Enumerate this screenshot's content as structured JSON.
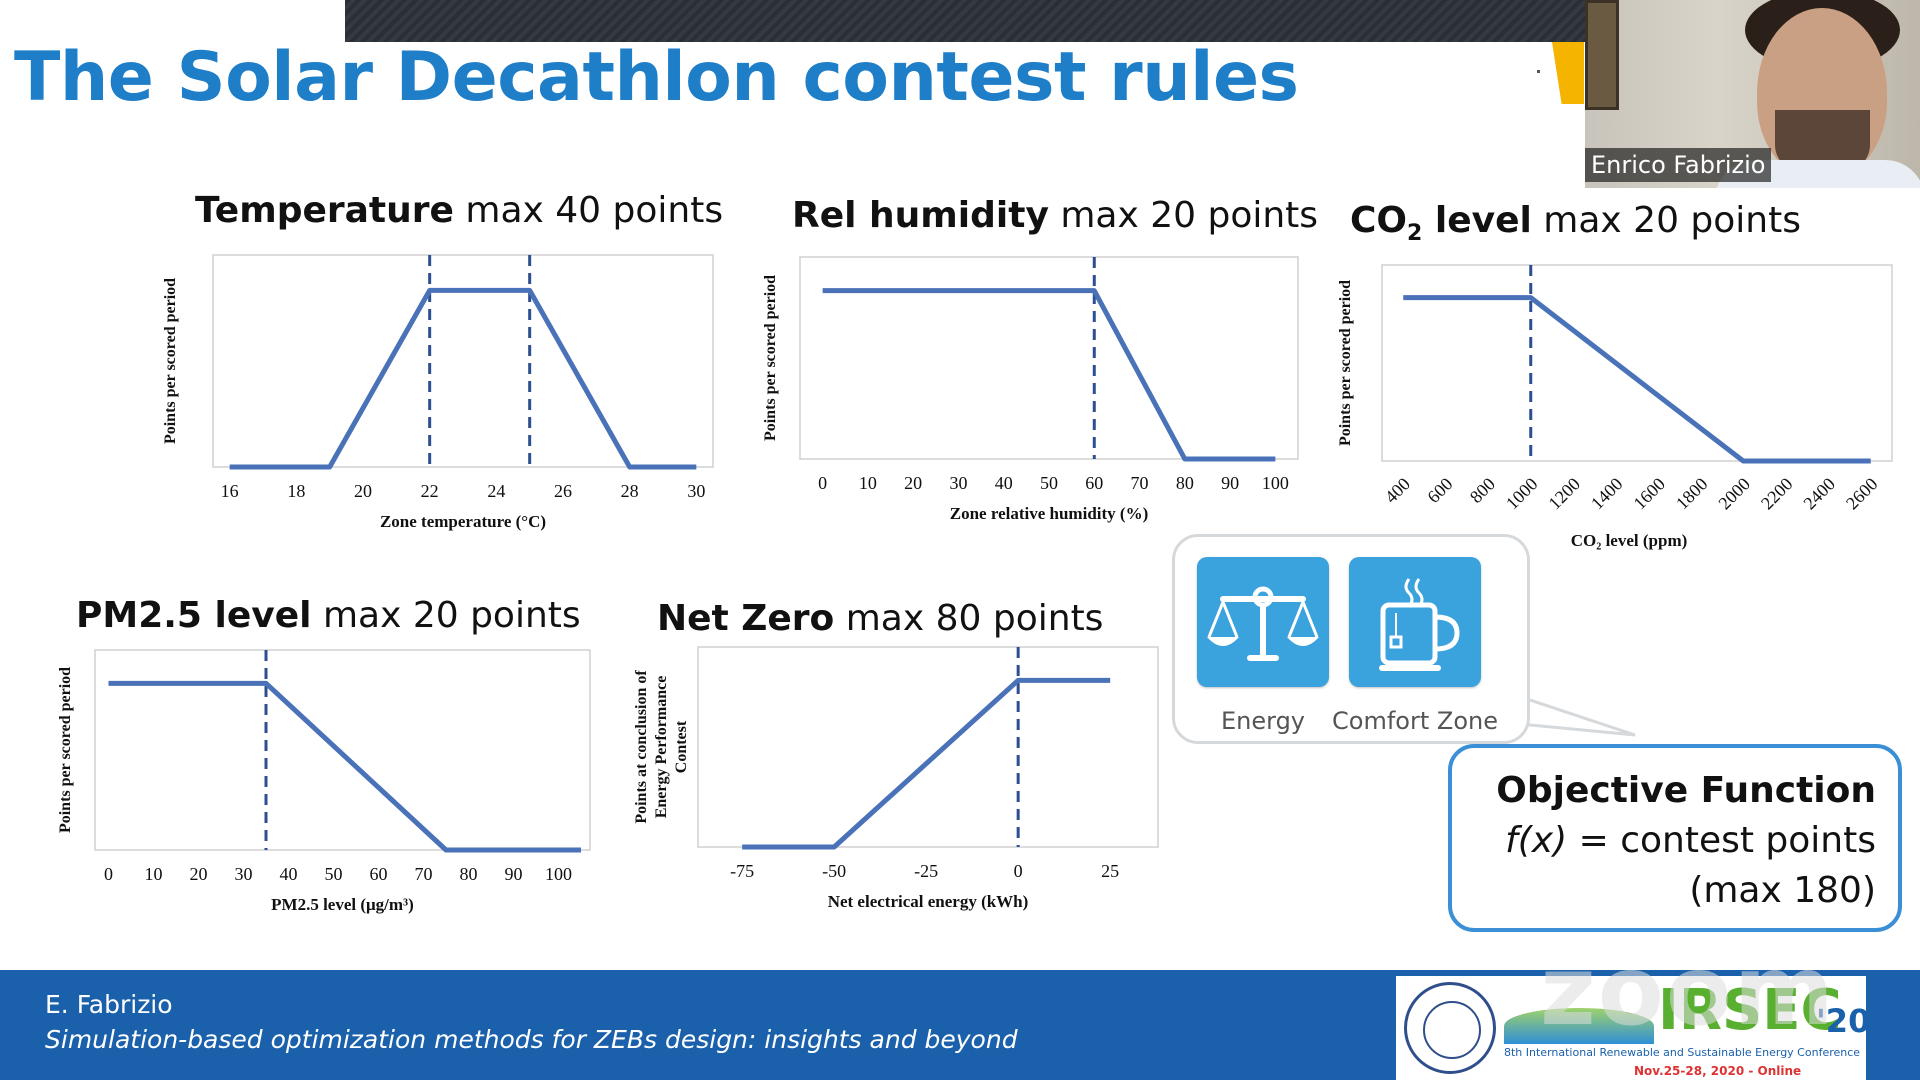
{
  "slide": {
    "title": "The Solar Decathlon contest rules"
  },
  "colors": {
    "title": "#1e7ec8",
    "line": "#4a72b8",
    "footer": "#1a60ab",
    "tile": "#3aa2dc",
    "objective_border": "#3b8fd6"
  },
  "charts": [
    {
      "head_bold": "Temperature",
      "head_rest": " max 40 points"
    },
    {
      "head_bold": "Rel humidity",
      "head_rest": " max 20 points"
    },
    {
      "head_bold_1": "CO",
      "head_sub": "2",
      "head_bold_2": " level",
      "head_rest": " max 20 points"
    },
    {
      "head_bold": "PM2.5 level",
      "head_rest": " max 20 points"
    },
    {
      "head_bold": "Net Zero",
      "head_rest": " max 80 points"
    }
  ],
  "chart_data": [
    {
      "type": "line",
      "title": "Temperature max 40 points",
      "xlabel": "Zone temperature (°C)",
      "ylabel": "Points per scored period",
      "xticks": [
        "16",
        "18",
        "20",
        "22",
        "24",
        "26",
        "28",
        "30"
      ],
      "xlim": [
        15.5,
        30.5
      ],
      "ylim": [
        0,
        1.2
      ],
      "x": [
        16,
        19,
        22,
        25,
        28,
        30
      ],
      "y": [
        0,
        0,
        1,
        1,
        0,
        0
      ],
      "dashed_x": [
        22,
        25
      ]
    },
    {
      "type": "line",
      "title": "Rel humidity max 20 points",
      "xlabel": "Zone relative humidity (%)",
      "ylabel": "Points per scored period",
      "xticks": [
        "0",
        "10",
        "20",
        "30",
        "40",
        "50",
        "60",
        "70",
        "80",
        "90",
        "100"
      ],
      "xlim": [
        -5,
        105
      ],
      "ylim": [
        0,
        1.2
      ],
      "x": [
        0,
        60,
        80,
        100
      ],
      "y": [
        1,
        1,
        0,
        0
      ],
      "dashed_x": [
        60
      ]
    },
    {
      "type": "line",
      "title": "CO2 level max 20 points",
      "xlabel": "CO₂ level (ppm)",
      "ylabel": "Points per scored period",
      "xticks": [
        "400",
        "600",
        "800",
        "1000",
        "1200",
        "1400",
        "1600",
        "1800",
        "2000",
        "2200",
        "2400",
        "2600"
      ],
      "xlim": [
        300,
        2700
      ],
      "ylim": [
        0,
        1.2
      ],
      "x": [
        400,
        1000,
        2000,
        2600
      ],
      "y": [
        1,
        1,
        0,
        0
      ],
      "dashed_x": [
        1000
      ]
    },
    {
      "type": "line",
      "title": "PM2.5 level max 20 points",
      "xlabel": "PM2.5 level (μg/m³)",
      "ylabel": "Points per scored period",
      "xticks": [
        "0",
        "10",
        "20",
        "30",
        "40",
        "50",
        "60",
        "70",
        "80",
        "90",
        "100"
      ],
      "xlim": [
        -3,
        107
      ],
      "ylim": [
        0,
        1.2
      ],
      "x": [
        0,
        35,
        75,
        105
      ],
      "y": [
        1,
        1,
        0,
        0
      ],
      "dashed_x": [
        35
      ]
    },
    {
      "type": "line",
      "title": "Net Zero max 80 points",
      "xlabel": "Net electrical energy (kWh)",
      "ylabel": "Points at conclusion of Energy Performance Contest",
      "xticks": [
        "-75",
        "-50",
        "-25",
        "0",
        "25"
      ],
      "xlim": [
        -87,
        38
      ],
      "ylim": [
        0,
        1.2
      ],
      "x": [
        -75,
        -50,
        0,
        25
      ],
      "y": [
        0,
        0,
        1,
        1
      ],
      "dashed_x": [
        0
      ]
    }
  ],
  "bubble": {
    "items": [
      {
        "label": "Energy",
        "icon": "balance-scale-icon"
      },
      {
        "label": "Comfort Zone",
        "icon": "coffee-mug-icon"
      }
    ]
  },
  "objective": {
    "title": "Objective Function",
    "fx": "f(x)",
    "line2_rest": " = contest points",
    "line3": "(max 180)"
  },
  "webcam": {
    "name": "Enrico Fabrizio"
  },
  "footer": {
    "author": "E. Fabrizio",
    "subtitle": "Simulation-based optimization methods for ZEBs design: insights and beyond"
  },
  "logos": {
    "conference": "IRSEC",
    "year": "'20",
    "conference_sub": "8th International Renewable and Sustainable Energy Conference",
    "conference_date": "Nov.25-28, 2020 - Online",
    "watermark": "zoom"
  }
}
